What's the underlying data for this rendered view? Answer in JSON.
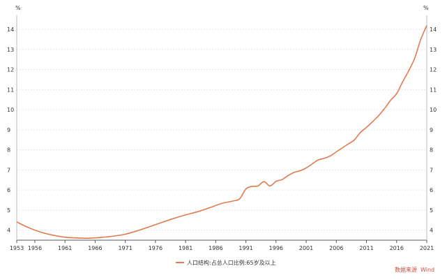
{
  "chart_data": {
    "type": "line",
    "title": "",
    "xlabel": "",
    "ylabel": "%",
    "y_unit_left": "%",
    "y_unit_right": "%",
    "xlim": [
      1953,
      2021
    ],
    "ylim": [
      3.5,
      14.7
    ],
    "x_ticks": [
      1953,
      1956,
      1961,
      1966,
      1971,
      1976,
      1981,
      1986,
      1991,
      1996,
      2001,
      2006,
      2011,
      2016,
      2021
    ],
    "y_ticks": [
      4,
      5,
      6,
      7,
      8,
      9,
      10,
      11,
      12,
      13,
      14
    ],
    "grid": true,
    "legend_position": "bottom",
    "series": [
      {
        "name": "人口结构:占总人口比例:65岁及以上",
        "color": "#e07a4f",
        "x": [
          1953,
          1955,
          1957,
          1959,
          1961,
          1963,
          1965,
          1967,
          1969,
          1971,
          1973,
          1975,
          1977,
          1979,
          1981,
          1983,
          1985,
          1987,
          1989,
          1990,
          1991,
          1992,
          1993,
          1994,
          1995,
          1996,
          1997,
          1998,
          1999,
          2000,
          2001,
          2002,
          2003,
          2004,
          2005,
          2006,
          2007,
          2008,
          2009,
          2010,
          2011,
          2012,
          2013,
          2014,
          2015,
          2016,
          2017,
          2018,
          2019,
          2020,
          2021
        ],
        "values": [
          4.41,
          4.12,
          3.9,
          3.75,
          3.65,
          3.61,
          3.6,
          3.64,
          3.7,
          3.8,
          3.97,
          4.17,
          4.38,
          4.58,
          4.76,
          4.92,
          5.12,
          5.33,
          5.46,
          5.57,
          6.05,
          6.18,
          6.2,
          6.42,
          6.2,
          6.43,
          6.52,
          6.72,
          6.88,
          6.96,
          7.1,
          7.3,
          7.5,
          7.58,
          7.7,
          7.9,
          8.1,
          8.3,
          8.5,
          8.87,
          9.12,
          9.4,
          9.7,
          10.06,
          10.47,
          10.8,
          11.39,
          11.94,
          12.57,
          13.5,
          14.2
        ]
      }
    ]
  },
  "source_label": "数据来源",
  "source_name": "Wind"
}
